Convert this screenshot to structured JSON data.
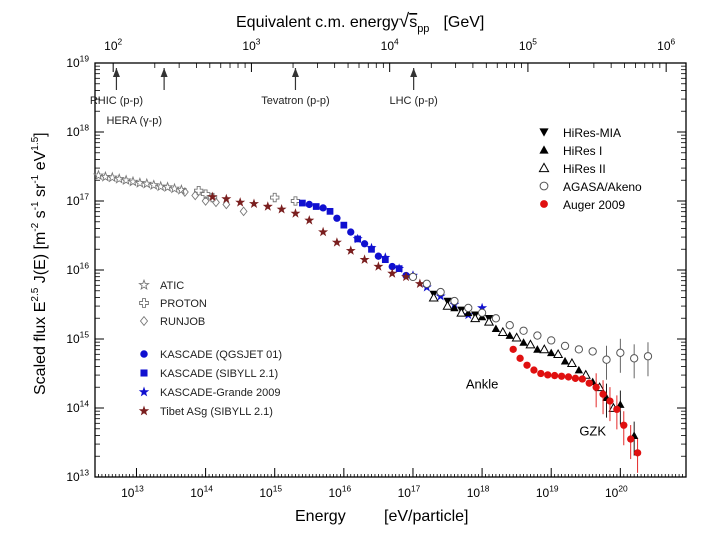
{
  "chart_data": {
    "type": "scatter",
    "title_top": "Equivalent c.m. energy",
    "title_top_sub": "pp",
    "title_top_unit": "[GeV]",
    "xlabel": "Energy",
    "xlabel_unit": "[eV/particle]",
    "ylabel_prefix": "Scaled flux",
    "ylabel_E": "E",
    "ylabel_exp": "2.5",
    "ylabel_J": " J(E)",
    "ylabel_unit": "[m",
    "xlim_log10": [
      12.4,
      20.95
    ],
    "ylim_log10": [
      13,
      19
    ],
    "x_ticks": [
      {
        "v": 13,
        "label": "10",
        "exp": "13"
      },
      {
        "v": 14,
        "label": "10",
        "exp": "14"
      },
      {
        "v": 15,
        "label": "10",
        "exp": "15"
      },
      {
        "v": 16,
        "label": "10",
        "exp": "16"
      },
      {
        "v": 17,
        "label": "10",
        "exp": "17"
      },
      {
        "v": 18,
        "label": "10",
        "exp": "18"
      },
      {
        "v": 19,
        "label": "10",
        "exp": "19"
      },
      {
        "v": 20,
        "label": "10",
        "exp": "20"
      }
    ],
    "y_ticks": [
      {
        "v": 13,
        "label": "10",
        "exp": "13"
      },
      {
        "v": 14,
        "label": "10",
        "exp": "14"
      },
      {
        "v": 15,
        "label": "10",
        "exp": "15"
      },
      {
        "v": 16,
        "label": "10",
        "exp": "16"
      },
      {
        "v": 17,
        "label": "10",
        "exp": "17"
      },
      {
        "v": 18,
        "label": "10",
        "exp": "18"
      },
      {
        "v": 19,
        "label": "10",
        "exp": "19"
      }
    ],
    "top_ticks": [
      {
        "v": 12.663,
        "label": "10",
        "exp": "2"
      },
      {
        "v": 14.663,
        "label": "10",
        "exp": "3"
      },
      {
        "v": 16.663,
        "label": "10",
        "exp": "4"
      },
      {
        "v": 18.663,
        "label": "10",
        "exp": "5"
      },
      {
        "v": 20.663,
        "label": "10",
        "exp": "6"
      }
    ],
    "accelerators": [
      {
        "name": "RHIC (p-p)",
        "x": 12.71,
        "line2": "HERA (γ-p)",
        "x2": 13.4
      },
      {
        "name": "Tevatron (p-p)",
        "x": 15.3
      },
      {
        "name": "LHC (p-p)",
        "x": 17.01
      }
    ],
    "annotations": [
      {
        "text": "Ankle",
        "x": 18.0,
        "y": 14.28
      },
      {
        "text": "GZK",
        "x": 19.6,
        "y": 13.6
      }
    ],
    "series": [
      {
        "name": "ATIC",
        "marker": "star-open",
        "color": "#777777",
        "points": [
          [
            12.45,
            17.37
          ],
          [
            12.55,
            17.35
          ],
          [
            12.65,
            17.34
          ],
          [
            12.75,
            17.32
          ],
          [
            12.85,
            17.3
          ],
          [
            12.95,
            17.28
          ],
          [
            13.05,
            17.26
          ],
          [
            13.15,
            17.25
          ],
          [
            13.25,
            17.23
          ],
          [
            13.35,
            17.21
          ],
          [
            13.45,
            17.2
          ],
          [
            13.55,
            17.18
          ],
          [
            13.65,
            17.16
          ]
        ]
      },
      {
        "name": "PROTON",
        "marker": "plus-open",
        "color": "#777777",
        "points": [
          [
            13.9,
            17.15
          ],
          [
            14.0,
            17.1
          ],
          [
            14.1,
            17.05
          ],
          [
            15.0,
            17.05
          ],
          [
            15.3,
            17.0
          ]
        ]
      },
      {
        "name": "RUNJOB",
        "marker": "diamond-open",
        "color": "#777777",
        "points": [
          [
            13.7,
            17.13
          ],
          [
            13.85,
            17.08
          ],
          [
            14.0,
            17.0
          ],
          [
            14.15,
            16.98
          ],
          [
            14.3,
            16.95
          ],
          [
            14.55,
            16.85
          ]
        ]
      },
      {
        "name": "KASCADE (QGSJET 01)",
        "marker": "circle",
        "color": "#1010d0",
        "points": [
          [
            15.5,
            16.95
          ],
          [
            15.7,
            16.9
          ],
          [
            15.9,
            16.75
          ],
          [
            16.1,
            16.55
          ],
          [
            16.3,
            16.38
          ],
          [
            16.5,
            16.2
          ],
          [
            16.7,
            16.05
          ],
          [
            16.9,
            15.92
          ]
        ]
      },
      {
        "name": "KASCADE (SIBYLL 2.1)",
        "marker": "square",
        "color": "#1010d0",
        "points": [
          [
            15.4,
            16.97
          ],
          [
            15.6,
            16.92
          ],
          [
            15.8,
            16.85
          ],
          [
            16.0,
            16.65
          ],
          [
            16.2,
            16.45
          ],
          [
            16.4,
            16.3
          ],
          [
            16.6,
            16.15
          ],
          [
            16.8,
            16.02
          ]
        ]
      },
      {
        "name": "KASCADE-Grande 2009",
        "marker": "star",
        "color": "#1010d0",
        "points": [
          [
            16.2,
            16.45
          ],
          [
            16.4,
            16.32
          ],
          [
            16.6,
            16.18
          ],
          [
            16.8,
            16.02
          ],
          [
            17.0,
            15.92
          ],
          [
            17.2,
            15.75
          ],
          [
            17.4,
            15.62
          ],
          [
            17.6,
            15.5
          ],
          [
            17.8,
            15.35
          ],
          [
            18.0,
            15.45
          ]
        ]
      },
      {
        "name": "Tibet ASg (SIBYLL 2.1)",
        "marker": "star",
        "color": "#7a1f1f",
        "points": [
          [
            14.1,
            17.06
          ],
          [
            14.3,
            17.03
          ],
          [
            14.5,
            16.98
          ],
          [
            14.7,
            16.96
          ],
          [
            14.9,
            16.92
          ],
          [
            15.1,
            16.88
          ],
          [
            15.3,
            16.82
          ],
          [
            15.5,
            16.72
          ],
          [
            15.7,
            16.55
          ],
          [
            15.9,
            16.4
          ],
          [
            16.1,
            16.28
          ],
          [
            16.3,
            16.15
          ],
          [
            16.5,
            16.05
          ],
          [
            16.7,
            15.95
          ],
          [
            16.9,
            15.9
          ],
          [
            17.1,
            15.8
          ]
        ]
      },
      {
        "name": "HiRes-MIA",
        "marker": "tri-down",
        "color": "#000000",
        "points": [
          [
            17.3,
            15.65
          ],
          [
            17.5,
            15.55
          ],
          [
            17.7,
            15.42
          ],
          [
            17.9,
            15.35
          ],
          [
            18.1,
            15.3
          ]
        ]
      },
      {
        "name": "HiRes I",
        "marker": "tri-up",
        "color": "#000000",
        "points": [
          [
            17.6,
            15.45
          ],
          [
            17.8,
            15.38
          ],
          [
            18.0,
            15.32
          ],
          [
            18.2,
            15.15
          ],
          [
            18.4,
            15.05
          ],
          [
            18.6,
            14.95
          ],
          [
            18.8,
            14.85
          ],
          [
            19.0,
            14.8
          ],
          [
            19.2,
            14.68
          ],
          [
            19.4,
            14.55
          ],
          [
            19.6,
            14.38
          ],
          [
            19.8,
            14.15
          ],
          [
            20.0,
            14.05
          ],
          [
            20.2,
            13.6
          ]
        ]
      },
      {
        "name": "HiRes II",
        "marker": "tri-up-open",
        "color": "#000000",
        "points": [
          [
            17.3,
            15.6
          ],
          [
            17.5,
            15.48
          ],
          [
            17.7,
            15.38
          ],
          [
            17.9,
            15.3
          ],
          [
            18.1,
            15.25
          ],
          [
            18.3,
            15.1
          ],
          [
            18.5,
            15.02
          ],
          [
            18.7,
            14.92
          ],
          [
            18.9,
            14.85
          ],
          [
            19.1,
            14.78
          ],
          [
            19.3,
            14.65
          ],
          [
            19.5,
            14.48
          ],
          [
            19.7,
            14.3
          ],
          [
            19.9,
            14.0
          ]
        ]
      },
      {
        "name": "AGASA/Akeno",
        "marker": "circle-open",
        "color": "#555555",
        "points": [
          [
            17.0,
            15.9
          ],
          [
            17.2,
            15.8
          ],
          [
            17.4,
            15.68
          ],
          [
            17.6,
            15.55
          ],
          [
            17.8,
            15.45
          ],
          [
            18.0,
            15.38
          ],
          [
            18.2,
            15.3
          ],
          [
            18.4,
            15.2
          ],
          [
            18.6,
            15.12
          ],
          [
            18.8,
            15.05
          ],
          [
            19.0,
            14.98
          ],
          [
            19.2,
            14.9
          ],
          [
            19.4,
            14.85
          ],
          [
            19.6,
            14.82
          ],
          [
            19.8,
            14.7
          ],
          [
            20.0,
            14.8
          ],
          [
            20.2,
            14.72
          ],
          [
            20.4,
            14.75
          ]
        ]
      },
      {
        "name": "Auger 2009",
        "marker": "circle",
        "color": "#e01010",
        "points": [
          [
            18.45,
            14.85
          ],
          [
            18.55,
            14.72
          ],
          [
            18.65,
            14.62
          ],
          [
            18.75,
            14.55
          ],
          [
            18.85,
            14.5
          ],
          [
            18.95,
            14.48
          ],
          [
            19.05,
            14.47
          ],
          [
            19.15,
            14.46
          ],
          [
            19.25,
            14.45
          ],
          [
            19.35,
            14.43
          ],
          [
            19.45,
            14.42
          ],
          [
            19.55,
            14.36
          ],
          [
            19.65,
            14.3
          ],
          [
            19.75,
            14.2
          ],
          [
            19.85,
            14.1
          ],
          [
            19.95,
            13.98
          ],
          [
            20.05,
            13.75
          ],
          [
            20.15,
            13.55
          ],
          [
            20.25,
            13.35
          ]
        ]
      }
    ]
  }
}
